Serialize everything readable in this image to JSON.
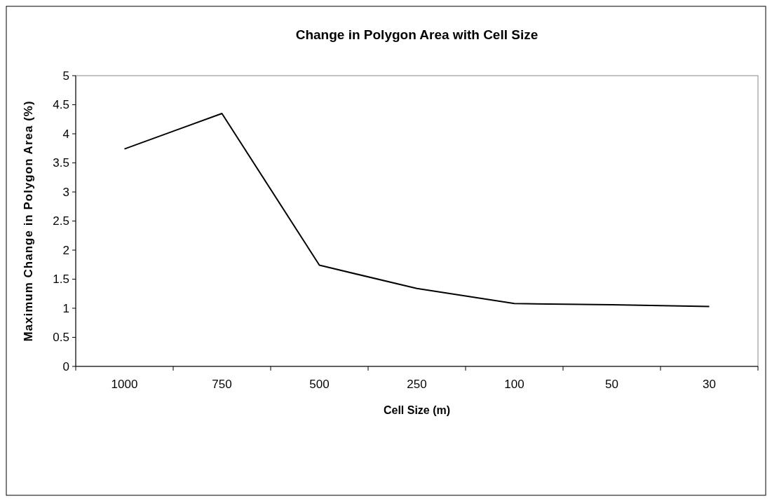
{
  "chart_data": {
    "type": "line",
    "title": "Change in Polygon Area with Cell Size",
    "xlabel": "Cell Size (m)",
    "ylabel": "Maximum Change in Polygon Area (%)",
    "categories": [
      "1000",
      "750",
      "500",
      "250",
      "100",
      "50",
      "30"
    ],
    "series": [
      {
        "color": "#000000",
        "values": [
          3.74,
          4.35,
          1.74,
          1.34,
          1.08,
          1.06,
          1.03
        ]
      }
    ],
    "ylim": [
      0,
      5
    ],
    "yticks": [
      0,
      0.5,
      1,
      1.5,
      2,
      2.5,
      3,
      3.5,
      4,
      4.5,
      5
    ],
    "grid": false,
    "marker": "none",
    "line_style": "solid"
  }
}
